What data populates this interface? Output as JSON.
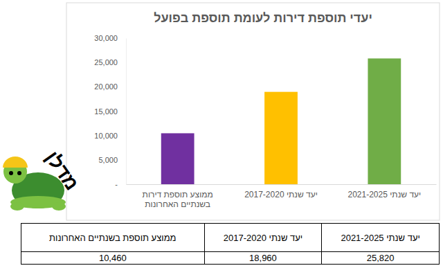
{
  "chart_data": {
    "type": "bar",
    "title": "יעדי תוספת דירות לעומת תוספת בפועל",
    "categories": [
      "ממוצע תוספת דירות בשנתיים האחרונות",
      "יעד שנתי 2017-2020",
      "יעד שנתי 2021-2025"
    ],
    "values": [
      10460,
      18960,
      25820
    ],
    "colors": [
      "#7030a0",
      "#ffc000",
      "#70ad47"
    ],
    "ylim": [
      0,
      30000
    ],
    "yticks": [
      {
        "value": 0,
        "label": "-"
      },
      {
        "value": 5000,
        "label": "5,000"
      },
      {
        "value": 10000,
        "label": "10,000"
      },
      {
        "value": 15000,
        "label": "15,000"
      },
      {
        "value": 20000,
        "label": "20,000"
      },
      {
        "value": 25000,
        "label": "25,000"
      },
      {
        "value": 30000,
        "label": "30,000"
      }
    ],
    "grid": false
  },
  "table": {
    "header": [
      "ממוצע תוספת בשנתיים האחרונות",
      "יעד שנתי 2017-2020",
      "יעד שנתי 2021-2025"
    ],
    "rows": [
      [
        "10,460",
        "18,960",
        "25,820"
      ]
    ]
  },
  "logo": {
    "text": "מדלן"
  }
}
